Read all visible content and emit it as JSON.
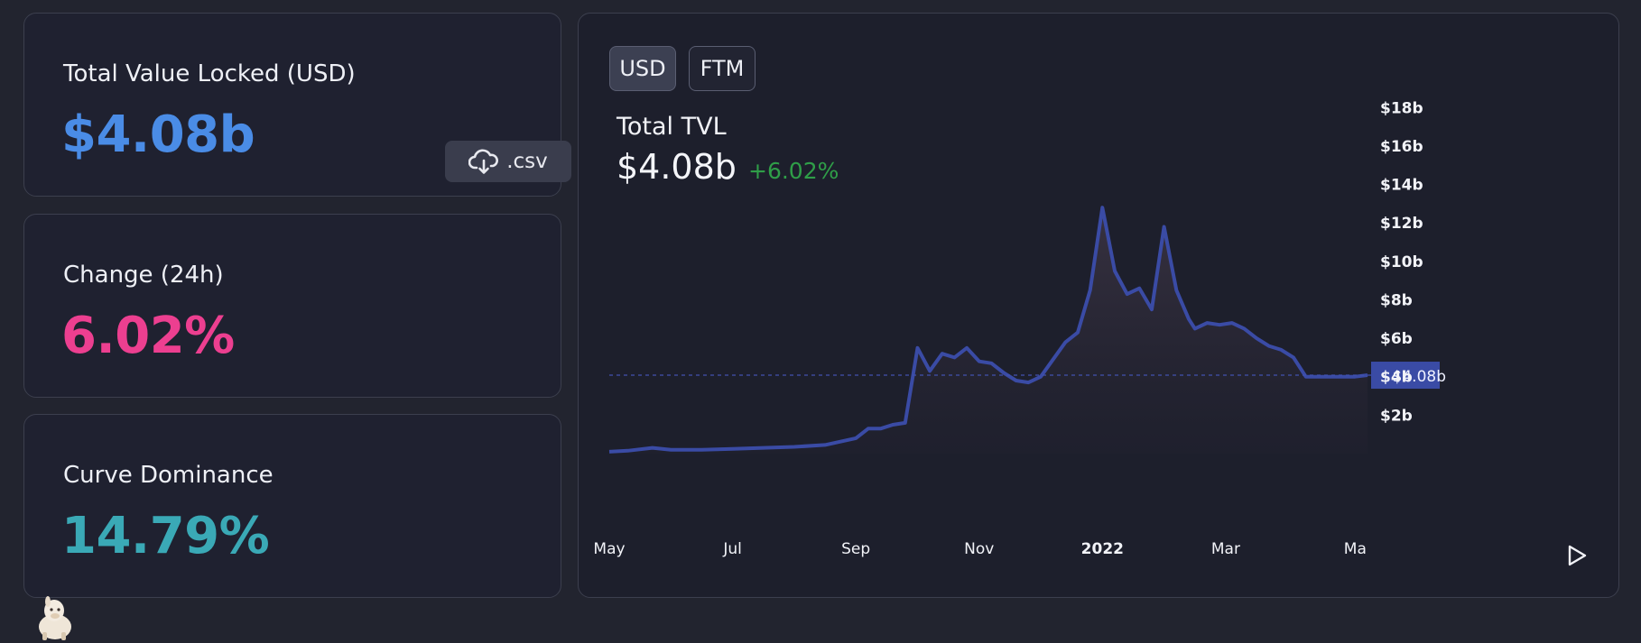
{
  "stats": {
    "tvl": {
      "label": "Total Value Locked (USD)",
      "value": "$4.08b",
      "color": "#4a8ce6"
    },
    "change": {
      "label": "Change (24h)",
      "value": "6.02%",
      "color": "#ec3f90"
    },
    "dominance": {
      "label": "Curve Dominance",
      "value": "14.79%",
      "color": "#3aa9b6"
    }
  },
  "csv_button": {
    "label": ".csv",
    "icon": "cloud-download-icon"
  },
  "toggles": {
    "usd": "USD",
    "ftm": "FTM"
  },
  "chart_header": {
    "title": "Total TVL",
    "value": "$4.08b",
    "change": "+6.02%"
  },
  "colors": {
    "line": "#3a4ba5",
    "change_positive": "#2f9e48"
  },
  "chart_data": {
    "type": "area",
    "title": "Total TVL",
    "x_unit": "months since May 2021",
    "y_unit": "USD billions",
    "x": [
      0,
      0.3,
      0.7,
      1,
      1.5,
      2,
      2.5,
      3,
      3.5,
      4,
      4.2,
      4.4,
      4.6,
      4.8,
      5.0,
      5.2,
      5.4,
      5.6,
      5.8,
      6.0,
      6.2,
      6.4,
      6.6,
      6.8,
      7.0,
      7.2,
      7.4,
      7.6,
      7.8,
      8.0,
      8.2,
      8.4,
      8.6,
      8.8,
      9.0,
      9.2,
      9.4,
      9.5,
      9.7,
      9.9,
      10.1,
      10.3,
      10.5,
      10.7,
      10.9,
      11.1,
      11.3,
      11.5,
      11.7,
      11.9,
      12.1,
      12.3
    ],
    "y": [
      0.1,
      0.15,
      0.3,
      0.2,
      0.2,
      0.25,
      0.3,
      0.35,
      0.45,
      0.8,
      1.3,
      1.3,
      1.5,
      1.6,
      5.5,
      4.3,
      5.2,
      5.0,
      5.5,
      4.8,
      4.7,
      4.2,
      3.8,
      3.7,
      4.0,
      4.9,
      5.8,
      6.3,
      8.5,
      12.8,
      9.5,
      8.3,
      8.6,
      7.5,
      11.8,
      8.5,
      7.0,
      6.5,
      6.8,
      6.7,
      6.8,
      6.5,
      6.0,
      5.6,
      5.4,
      5.0,
      4.0,
      4.0,
      4.0,
      4.0,
      4.0,
      4.08
    ],
    "y_ticks": [
      "$2b",
      "$4b",
      "$6b",
      "$8b",
      "$10b",
      "$12b",
      "$14b",
      "$16b",
      "$18b"
    ],
    "y_tick_values": [
      2,
      4,
      6,
      8,
      10,
      12,
      14,
      16,
      18
    ],
    "x_ticks": [
      "May",
      "Jul",
      "Sep",
      "Nov",
      "2022",
      "Mar",
      "Ma"
    ],
    "x_tick_values": [
      0,
      2,
      4,
      6,
      8,
      10,
      12.1
    ],
    "ylim": [
      0,
      19
    ],
    "current_value": 4.08,
    "current_label": "$4.08b"
  }
}
